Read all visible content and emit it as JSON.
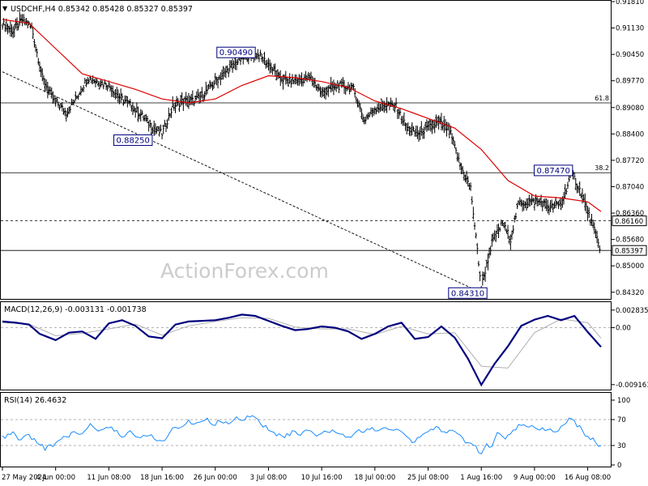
{
  "header": {
    "price_title": "USDCHF,H4  0.85342 0.85428 0.85327 0.85397",
    "macd_title": "MACD(12,26,9) -0.003131 -0.001738",
    "rsi_title": "RSI(14) 26.4632",
    "watermark": "ActionForex.com"
  },
  "colors": {
    "bars": "#000000",
    "ma": "#dd0000",
    "macd": "#00007f",
    "signal": "#b0b0b0",
    "rsi": "#1a8cff",
    "grid": "#000000",
    "last_price_box": "#ffffff",
    "label_border": "#00007f"
  },
  "chart_data": [
    {
      "type": "line",
      "panel": "price",
      "symbol": "USDCHF",
      "timeframe": "H4",
      "ohlc_last": {
        "open": 0.85342,
        "high": 0.85428,
        "low": 0.85327,
        "close": 0.85397
      },
      "x_tick_labels": [
        "27 May 2024",
        "4 Jun 00:00",
        "11 Jun 08:00",
        "18 Jun 16:00",
        "26 Jun 00:00",
        "3 Jul 08:00",
        "10 Jul 16:00",
        "18 Jul 00:00",
        "25 Jul 08:00",
        "1 Aug 16:00",
        "9 Aug 00:00",
        "16 Aug 08:00"
      ],
      "x_tick_index": [
        0,
        40,
        80,
        120,
        160,
        200,
        240,
        280,
        320,
        360,
        400,
        440
      ],
      "y_tick_labels": [
        "0.91810",
        "0.91130",
        "0.90450",
        "0.89770",
        "0.89080",
        "0.88400",
        "0.87720",
        "0.87040",
        "0.86360",
        "0.85680",
        "0.85000",
        "0.84320"
      ],
      "ylim": [
        0.8419,
        0.9181
      ],
      "bars_count": 450,
      "price_path": [
        [
          0,
          0.9125
        ],
        [
          8,
          0.9105
        ],
        [
          15,
          0.9135
        ],
        [
          22,
          0.9115
        ],
        [
          30,
          0.8985
        ],
        [
          38,
          0.893
        ],
        [
          48,
          0.8895
        ],
        [
          56,
          0.8935
        ],
        [
          64,
          0.8985
        ],
        [
          72,
          0.8975
        ],
        [
          80,
          0.8965
        ],
        [
          88,
          0.8935
        ],
        [
          96,
          0.8915
        ],
        [
          104,
          0.889
        ],
        [
          112,
          0.886
        ],
        [
          120,
          0.884
        ],
        [
          128,
          0.891
        ],
        [
          136,
          0.8925
        ],
        [
          144,
          0.8925
        ],
        [
          152,
          0.8945
        ],
        [
          160,
          0.8975
        ],
        [
          168,
          0.9
        ],
        [
          176,
          0.9025
        ],
        [
          184,
          0.904
        ],
        [
          192,
          0.9045
        ],
        [
          200,
          0.902
        ],
        [
          208,
          0.8985
        ],
        [
          216,
          0.8975
        ],
        [
          224,
          0.898
        ],
        [
          232,
          0.8985
        ],
        [
          240,
          0.8945
        ],
        [
          248,
          0.896
        ],
        [
          256,
          0.8965
        ],
        [
          264,
          0.8955
        ],
        [
          272,
          0.8875
        ],
        [
          280,
          0.8905
        ],
        [
          288,
          0.8915
        ],
        [
          296,
          0.891
        ],
        [
          304,
          0.8855
        ],
        [
          312,
          0.884
        ],
        [
          320,
          0.8855
        ],
        [
          328,
          0.887
        ],
        [
          336,
          0.885
        ],
        [
          344,
          0.876
        ],
        [
          352,
          0.87
        ],
        [
          360,
          0.8445
        ],
        [
          368,
          0.856
        ],
        [
          376,
          0.861
        ],
        [
          382,
          0.857
        ],
        [
          388,
          0.866
        ],
        [
          396,
          0.8665
        ],
        [
          404,
          0.8665
        ],
        [
          412,
          0.865
        ],
        [
          420,
          0.866
        ],
        [
          428,
          0.874
        ],
        [
          436,
          0.868
        ],
        [
          444,
          0.86
        ],
        [
          450,
          0.854
        ]
      ],
      "ma_path": [
        [
          0,
          0.9135
        ],
        [
          20,
          0.9125
        ],
        [
          40,
          0.906
        ],
        [
          60,
          0.8995
        ],
        [
          80,
          0.8975
        ],
        [
          100,
          0.8955
        ],
        [
          120,
          0.893
        ],
        [
          140,
          0.892
        ],
        [
          160,
          0.893
        ],
        [
          180,
          0.8965
        ],
        [
          200,
          0.899
        ],
        [
          220,
          0.8985
        ],
        [
          240,
          0.8975
        ],
        [
          260,
          0.896
        ],
        [
          280,
          0.8925
        ],
        [
          300,
          0.8905
        ],
        [
          320,
          0.888
        ],
        [
          340,
          0.8855
        ],
        [
          360,
          0.88
        ],
        [
          380,
          0.872
        ],
        [
          400,
          0.868
        ],
        [
          420,
          0.8675
        ],
        [
          440,
          0.8665
        ],
        [
          450,
          0.864
        ]
      ],
      "horizontal_levels": [
        {
          "value": 0.892,
          "label": "61.8",
          "style": "solid"
        },
        {
          "value": 0.874,
          "label": "38.2",
          "style": "solid"
        },
        {
          "value": 0.8616,
          "label": "0.86160",
          "style": "dashed"
        },
        {
          "value": 0.85397,
          "label": "0.85397",
          "style": "solid"
        }
      ],
      "trendline": [
        [
          0,
          0.9
        ],
        [
          360,
          0.8431
        ]
      ],
      "annotations": [
        {
          "label": "0.90490",
          "index": 184,
          "value": 0.9049
        },
        {
          "label": "0.88250",
          "index": 112,
          "value": 0.8825
        },
        {
          "label": "0.87470",
          "index": 428,
          "value": 0.8747
        },
        {
          "label": "0.84310",
          "index": 360,
          "value": 0.8431
        }
      ],
      "y_tick_value_of_last": 0.85397
    },
    {
      "type": "line",
      "panel": "macd",
      "title": "MACD(12,26,9) -0.003131 -0.001738",
      "y_tick_labels": [
        "0.002835",
        "0.00",
        "-0.009161"
      ],
      "ylim": [
        -0.0097,
        0.0032
      ],
      "series": [
        {
          "name": "MACD",
          "path": [
            [
              0,
              0.001
            ],
            [
              10,
              0.0008
            ],
            [
              20,
              0.0005
            ],
            [
              28,
              -0.001
            ],
            [
              40,
              -0.002
            ],
            [
              50,
              -0.0008
            ],
            [
              60,
              -0.0006
            ],
            [
              70,
              -0.0018
            ],
            [
              80,
              0.0007
            ],
            [
              90,
              0.0012
            ],
            [
              100,
              0.0003
            ],
            [
              110,
              -0.0014
            ],
            [
              120,
              -0.0017
            ],
            [
              130,
              0.0005
            ],
            [
              140,
              0.001
            ],
            [
              150,
              0.0011
            ],
            [
              160,
              0.0012
            ],
            [
              170,
              0.0016
            ],
            [
              180,
              0.0021
            ],
            [
              190,
              0.0019
            ],
            [
              200,
              0.0011
            ],
            [
              210,
              0.0003
            ],
            [
              220,
              -0.0004
            ],
            [
              230,
              -0.0002
            ],
            [
              240,
              0.0002
            ],
            [
              250,
              0.0
            ],
            [
              260,
              -0.0006
            ],
            [
              270,
              -0.0018
            ],
            [
              280,
              -0.001
            ],
            [
              290,
              0.0002
            ],
            [
              300,
              0.0008
            ],
            [
              310,
              -0.0018
            ],
            [
              320,
              -0.0015
            ],
            [
              330,
              0.0002
            ],
            [
              340,
              -0.0016
            ],
            [
              350,
              -0.005
            ],
            [
              360,
              -0.0092
            ],
            [
              370,
              -0.0058
            ],
            [
              380,
              -0.003
            ],
            [
              390,
              0.0003
            ],
            [
              400,
              0.0013
            ],
            [
              410,
              0.0019
            ],
            [
              420,
              0.0012
            ],
            [
              430,
              0.0019
            ],
            [
              440,
              -0.0007
            ],
            [
              450,
              -0.0031
            ]
          ]
        },
        {
          "name": "Signal",
          "path": [
            [
              0,
              0.0008
            ],
            [
              20,
              0.0006
            ],
            [
              40,
              -0.0013
            ],
            [
              60,
              -0.0009
            ],
            [
              80,
              -0.0002
            ],
            [
              100,
              0.0006
            ],
            [
              120,
              -0.0012
            ],
            [
              140,
              0.0003
            ],
            [
              160,
              0.001
            ],
            [
              180,
              0.0016
            ],
            [
              200,
              0.0015
            ],
            [
              220,
              0.0001
            ],
            [
              240,
              -0.0002
            ],
            [
              260,
              -0.0002
            ],
            [
              280,
              -0.0011
            ],
            [
              300,
              0.0002
            ],
            [
              320,
              -0.001
            ],
            [
              340,
              -0.0008
            ],
            [
              360,
              -0.0062
            ],
            [
              380,
              -0.0065
            ],
            [
              400,
              -0.0008
            ],
            [
              420,
              0.0014
            ],
            [
              440,
              0.0008
            ],
            [
              450,
              -0.0017
            ]
          ]
        }
      ]
    },
    {
      "type": "line",
      "panel": "rsi",
      "title": "RSI(14) 26.4632",
      "y_tick_labels": [
        "100",
        "70",
        "30",
        "0"
      ],
      "ylim": [
        0,
        100
      ],
      "levels": [
        70,
        30
      ],
      "series": [
        {
          "name": "RSI",
          "path": [
            [
              0,
              42
            ],
            [
              8,
              48
            ],
            [
              14,
              39
            ],
            [
              20,
              45
            ],
            [
              26,
              36
            ],
            [
              32,
              26
            ],
            [
              40,
              32
            ],
            [
              46,
              41
            ],
            [
              52,
              49
            ],
            [
              60,
              48
            ],
            [
              66,
              62
            ],
            [
              72,
              50
            ],
            [
              78,
              59
            ],
            [
              84,
              55
            ],
            [
              90,
              45
            ],
            [
              96,
              51
            ],
            [
              104,
              41
            ],
            [
              110,
              47
            ],
            [
              116,
              40
            ],
            [
              122,
              36
            ],
            [
              128,
              58
            ],
            [
              134,
              57
            ],
            [
              140,
              68
            ],
            [
              146,
              62
            ],
            [
              152,
              72
            ],
            [
              158,
              63
            ],
            [
              164,
              67
            ],
            [
              170,
              65
            ],
            [
              176,
              72
            ],
            [
              182,
              71
            ],
            [
              188,
              77
            ],
            [
              194,
              65
            ],
            [
              200,
              55
            ],
            [
              206,
              46
            ],
            [
              212,
              43
            ],
            [
              218,
              50
            ],
            [
              224,
              47
            ],
            [
              230,
              54
            ],
            [
              236,
              41
            ],
            [
              242,
              50
            ],
            [
              248,
              53
            ],
            [
              254,
              48
            ],
            [
              260,
              41
            ],
            [
              266,
              54
            ],
            [
              272,
              50
            ],
            [
              278,
              58
            ],
            [
              284,
              52
            ],
            [
              290,
              57
            ],
            [
              296,
              55
            ],
            [
              302,
              47
            ],
            [
              308,
              35
            ],
            [
              314,
              42
            ],
            [
              320,
              52
            ],
            [
              326,
              57
            ],
            [
              332,
              53
            ],
            [
              338,
              52
            ],
            [
              344,
              43
            ],
            [
              350,
              34
            ],
            [
              356,
              29
            ],
            [
              360,
              14
            ],
            [
              364,
              34
            ],
            [
              368,
              27
            ],
            [
              372,
              48
            ],
            [
              378,
              40
            ],
            [
              384,
              52
            ],
            [
              390,
              63
            ],
            [
              396,
              58
            ],
            [
              402,
              57
            ],
            [
              408,
              54
            ],
            [
              414,
              52
            ],
            [
              420,
              57
            ],
            [
              426,
              71
            ],
            [
              432,
              62
            ],
            [
              438,
              48
            ],
            [
              444,
              40
            ],
            [
              450,
              26
            ]
          ]
        }
      ]
    }
  ]
}
